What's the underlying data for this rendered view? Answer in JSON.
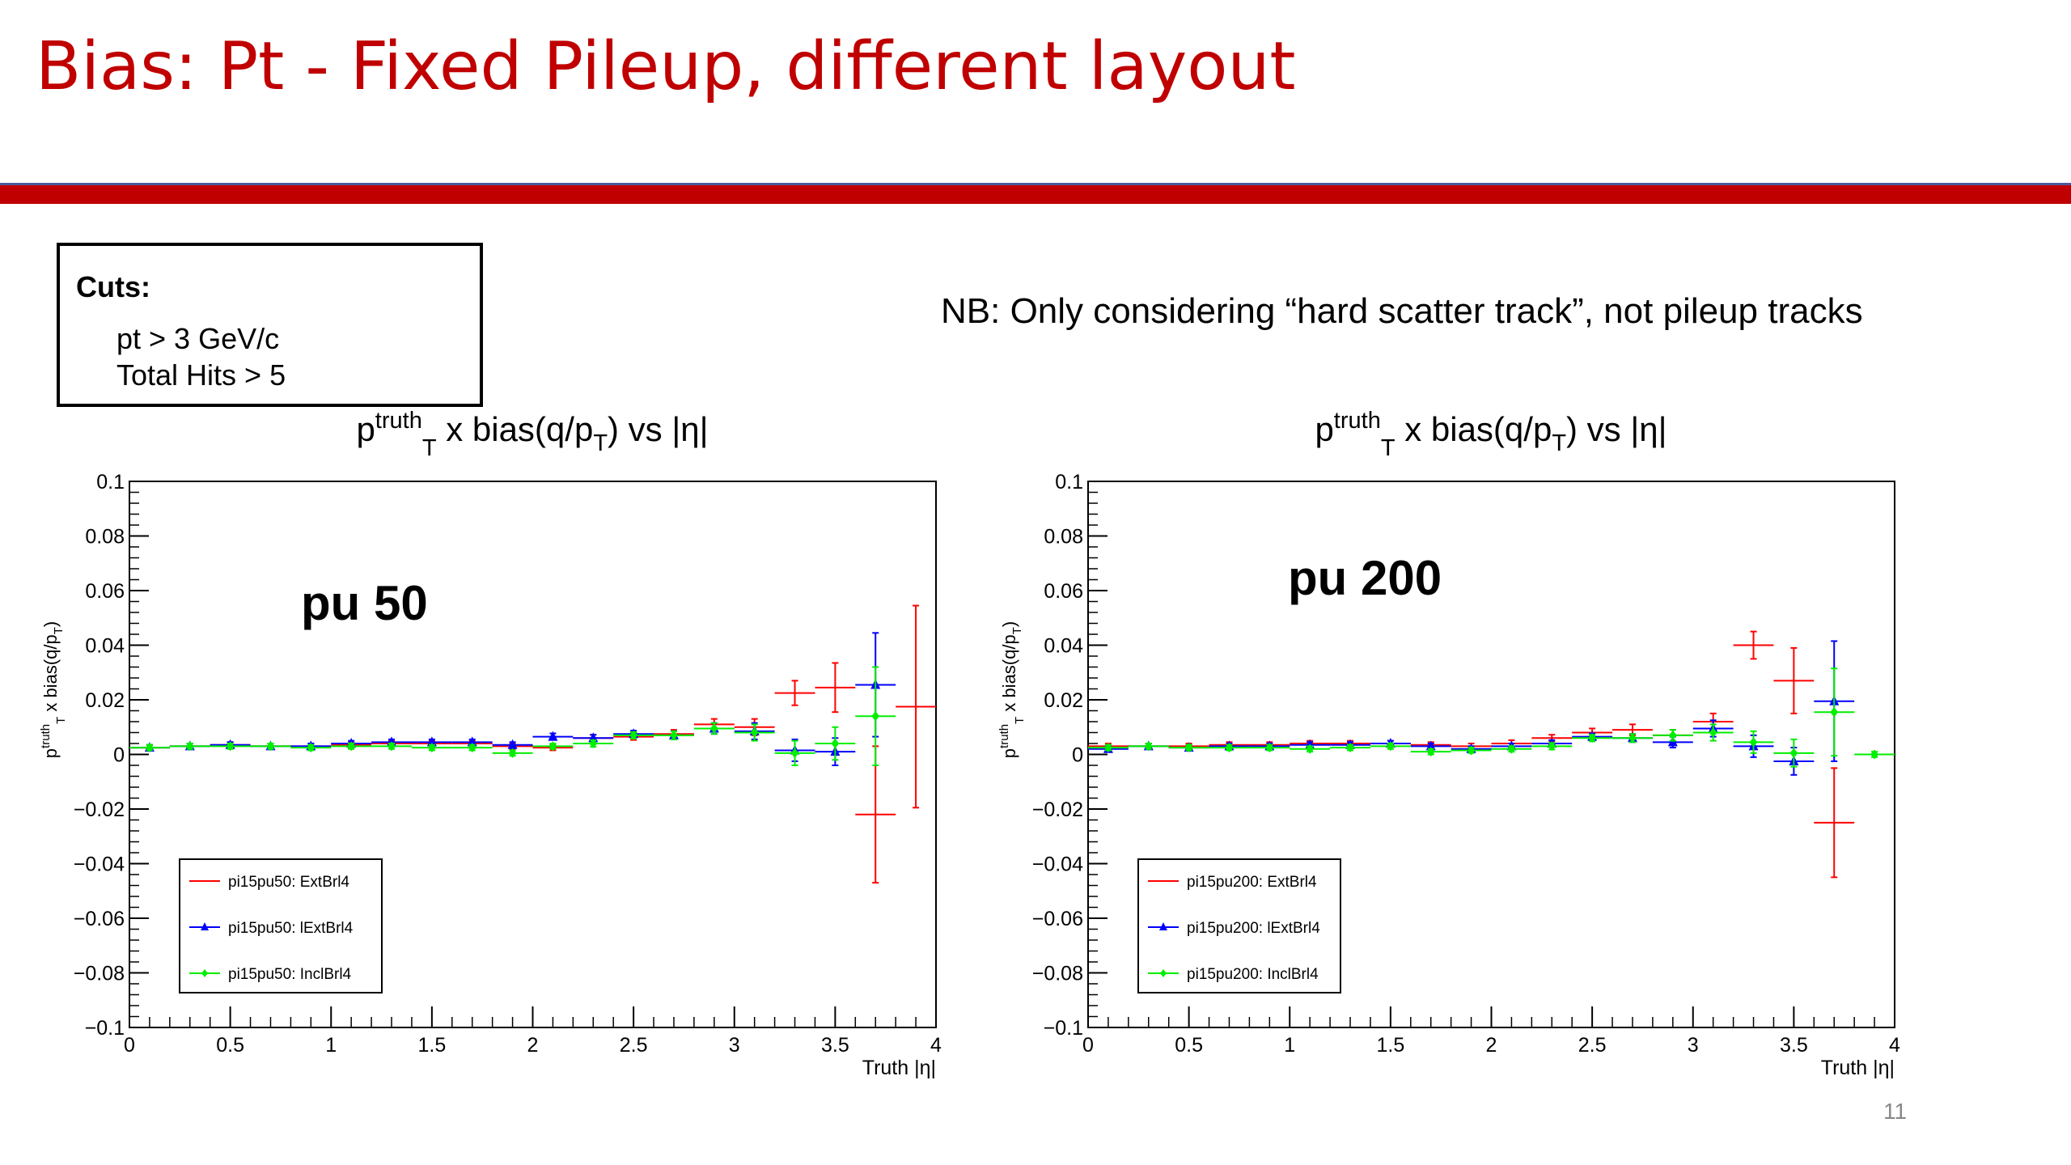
{
  "slide": {
    "title": "Bias: Pt - Fixed Pileup, different layout",
    "page_number": "11",
    "title_color": "#c00000",
    "rule_color": "#c00000",
    "rule_edge_color": "#4a5a9a"
  },
  "cuts": {
    "title": "Cuts:",
    "items": [
      "pt > 3 GeV/c",
      "Total Hits > 5"
    ]
  },
  "note": "NB: Only considering “hard scatter track”, not pileup tracks",
  "chart_data": [
    {
      "type": "scatter",
      "title": {
        "p": "p",
        "sup": "truth",
        "sub": "T",
        "mid": " x bias(q/p",
        "sub2": "T",
        "end": ") vs |η|"
      },
      "annotation": "pu 50",
      "xlabel": "Truth |η|",
      "ylabel": {
        "p": "p",
        "sup": "truth",
        "sub": "T",
        "mid": " x bias(q/p",
        "sub2": "T",
        "end": ")"
      },
      "xlim": [
        0,
        4
      ],
      "ylim": [
        -0.1,
        0.1
      ],
      "xticks": [
        0,
        0.5,
        1,
        1.5,
        2,
        2.5,
        3,
        3.5,
        4
      ],
      "xtick_labels": [
        "0",
        "0.5",
        "1",
        "1.5",
        "2",
        "2.5",
        "3",
        "3.5",
        "4"
      ],
      "yticks": [
        -0.1,
        -0.08,
        -0.06,
        -0.04,
        -0.02,
        0,
        0.02,
        0.04,
        0.06,
        0.08,
        0.1
      ],
      "ytick_labels": [
        "−0.1",
        "−0.08",
        "−0.06",
        "−0.04",
        "−0.02",
        "0",
        "0.02",
        "0.04",
        "0.06",
        "0.08",
        "0.1"
      ],
      "legend_position": "bottom-left",
      "series": [
        {
          "name": "pi15pu50: ExtBrl4",
          "color": "#ff0000",
          "marker": "none",
          "x": [
            0.1,
            0.3,
            0.5,
            0.7,
            0.9,
            1.1,
            1.3,
            1.5,
            1.7,
            1.9,
            2.1,
            2.3,
            2.5,
            2.7,
            2.9,
            3.1,
            3.3,
            3.5,
            3.7,
            3.9
          ],
          "y": [
            0.0025,
            0.003,
            0.0035,
            0.003,
            0.003,
            0.0035,
            0.004,
            0.004,
            0.004,
            0.003,
            0.0025,
            0.006,
            0.0065,
            0.0075,
            0.011,
            0.01,
            0.0225,
            0.0245,
            -0.022,
            0.0175
          ],
          "yerr": [
            0.001,
            0.001,
            0.001,
            0.001,
            0.001,
            0.001,
            0.001,
            0.001,
            0.001,
            0.001,
            0.001,
            0.0012,
            0.0012,
            0.0015,
            0.002,
            0.003,
            0.0045,
            0.009,
            0.025,
            0.037
          ]
        },
        {
          "name": "pi15pu50: lExtBrl4",
          "color": "#0000ff",
          "marker": "triangle",
          "x": [
            0.1,
            0.3,
            0.5,
            0.7,
            0.9,
            1.1,
            1.3,
            1.5,
            1.7,
            1.9,
            2.1,
            2.3,
            2.5,
            2.7,
            2.9,
            3.1,
            3.3,
            3.5,
            3.7
          ],
          "y": [
            0.0025,
            0.003,
            0.0035,
            0.003,
            0.003,
            0.004,
            0.0045,
            0.0045,
            0.0045,
            0.0035,
            0.0065,
            0.006,
            0.0075,
            0.007,
            0.0095,
            0.0085,
            0.0015,
            0.001,
            0.0255
          ],
          "yerr": [
            0.001,
            0.001,
            0.001,
            0.001,
            0.001,
            0.001,
            0.001,
            0.001,
            0.001,
            0.001,
            0.0012,
            0.0012,
            0.0012,
            0.0015,
            0.002,
            0.003,
            0.004,
            0.005,
            0.019
          ]
        },
        {
          "name": "pi15pu50: InclBrl4",
          "color": "#00ee00",
          "marker": "diamond",
          "x": [
            0.1,
            0.3,
            0.5,
            0.7,
            0.9,
            1.1,
            1.3,
            1.5,
            1.7,
            1.9,
            2.1,
            2.3,
            2.5,
            2.7,
            2.9,
            3.1,
            3.3,
            3.5,
            3.7
          ],
          "y": [
            0.0025,
            0.003,
            0.003,
            0.003,
            0.0025,
            0.003,
            0.003,
            0.0025,
            0.0025,
            0.0005,
            0.003,
            0.004,
            0.007,
            0.007,
            0.0095,
            0.008,
            0.0005,
            0.004,
            0.014
          ],
          "yerr": [
            0.001,
            0.001,
            0.001,
            0.001,
            0.001,
            0.001,
            0.001,
            0.001,
            0.001,
            0.001,
            0.001,
            0.0012,
            0.0012,
            0.0015,
            0.002,
            0.003,
            0.0045,
            0.006,
            0.018
          ]
        }
      ]
    },
    {
      "type": "scatter",
      "title": {
        "p": "p",
        "sup": "truth",
        "sub": "T",
        "mid": " x bias(q/p",
        "sub2": "T",
        "end": ") vs |η|"
      },
      "annotation": "pu 200",
      "xlabel": "Truth |η|",
      "ylabel": {
        "p": "p",
        "sup": "truth",
        "sub": "T",
        "mid": " x bias(q/p",
        "sub2": "T",
        "end": ")"
      },
      "xlim": [
        0,
        4
      ],
      "ylim": [
        -0.1,
        0.1
      ],
      "xticks": [
        0,
        0.5,
        1,
        1.5,
        2,
        2.5,
        3,
        3.5,
        4
      ],
      "xtick_labels": [
        "0",
        "0.5",
        "1",
        "1.5",
        "2",
        "2.5",
        "3",
        "3.5",
        "4"
      ],
      "yticks": [
        -0.1,
        -0.08,
        -0.06,
        -0.04,
        -0.02,
        0,
        0.02,
        0.04,
        0.06,
        0.08,
        0.1
      ],
      "ytick_labels": [
        "−0.1",
        "−0.08",
        "−0.06",
        "−0.04",
        "−0.02",
        "0",
        "0.02",
        "0.04",
        "0.06",
        "0.08",
        "0.1"
      ],
      "legend_position": "bottom-left",
      "series": [
        {
          "name": "pi15pu200: ExtBrl4",
          "color": "#ff0000",
          "marker": "none",
          "x": [
            0.1,
            0.3,
            0.5,
            0.7,
            0.9,
            1.1,
            1.3,
            1.5,
            1.7,
            1.9,
            2.1,
            2.3,
            2.5,
            2.7,
            2.9,
            3.1,
            3.3,
            3.5,
            3.7
          ],
          "y": [
            0.003,
            0.003,
            0.003,
            0.0035,
            0.0035,
            0.004,
            0.004,
            0.004,
            0.0035,
            0.003,
            0.004,
            0.006,
            0.008,
            0.009,
            0.007,
            0.012,
            0.04,
            0.027,
            -0.025
          ],
          "yerr": [
            0.001,
            0.001,
            0.001,
            0.001,
            0.001,
            0.001,
            0.001,
            0.001,
            0.001,
            0.001,
            0.0012,
            0.0012,
            0.0015,
            0.002,
            0.002,
            0.003,
            0.005,
            0.012,
            0.02
          ]
        },
        {
          "name": "pi15pu200: lExtBrl4",
          "color": "#0000ff",
          "marker": "triangle",
          "x": [
            0.1,
            0.3,
            0.5,
            0.7,
            0.9,
            1.1,
            1.3,
            1.5,
            1.7,
            1.9,
            2.1,
            2.3,
            2.5,
            2.7,
            2.9,
            3.1,
            3.3,
            3.5,
            3.7
          ],
          "y": [
            0.002,
            0.003,
            0.0025,
            0.003,
            0.003,
            0.0035,
            0.0035,
            0.004,
            0.003,
            0.002,
            0.003,
            0.004,
            0.0065,
            0.006,
            0.0045,
            0.0095,
            0.003,
            -0.0025,
            0.0195
          ],
          "yerr": [
            0.001,
            0.001,
            0.001,
            0.001,
            0.001,
            0.001,
            0.001,
            0.001,
            0.001,
            0.001,
            0.001,
            0.0012,
            0.0012,
            0.0015,
            0.002,
            0.003,
            0.004,
            0.005,
            0.022
          ]
        },
        {
          "name": "pi15pu200: InclBrl4",
          "color": "#00ee00",
          "marker": "diamond",
          "x": [
            0.1,
            0.3,
            0.5,
            0.7,
            0.9,
            1.1,
            1.3,
            1.5,
            1.7,
            1.9,
            2.1,
            2.3,
            2.5,
            2.7,
            2.9,
            3.1,
            3.3,
            3.5,
            3.7,
            3.9
          ],
          "y": [
            0.0025,
            0.003,
            0.0025,
            0.0025,
            0.0025,
            0.002,
            0.0025,
            0.003,
            0.001,
            0.0015,
            0.002,
            0.003,
            0.006,
            0.006,
            0.007,
            0.008,
            0.0045,
            0.0005,
            0.0155,
            0.0
          ],
          "yerr": [
            0.001,
            0.001,
            0.001,
            0.001,
            0.001,
            0.001,
            0.001,
            0.001,
            0.001,
            0.001,
            0.001,
            0.0012,
            0.0012,
            0.0015,
            0.002,
            0.003,
            0.004,
            0.005,
            0.016,
            0.001
          ]
        }
      ]
    }
  ]
}
